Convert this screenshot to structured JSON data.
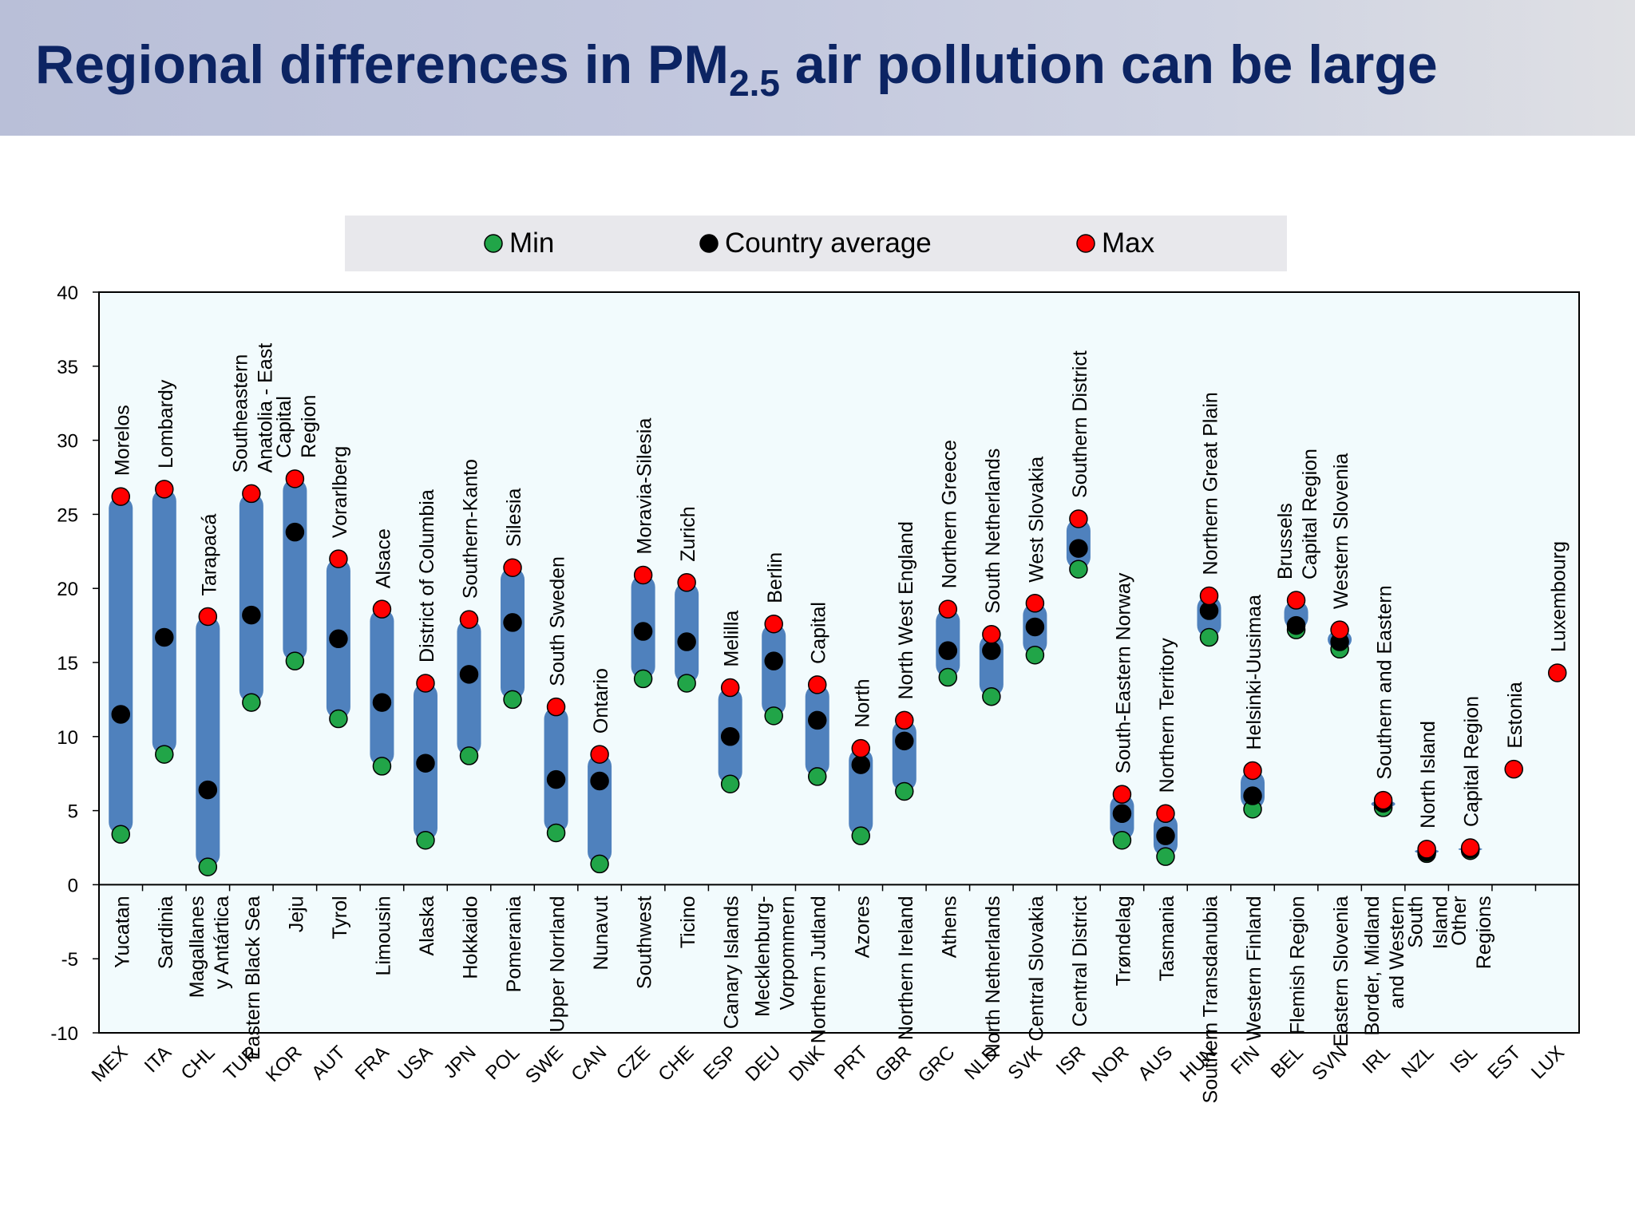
{
  "slide": {
    "title_main": "Regional differences in PM",
    "title_subscript": "2.5",
    "title_rest": " air pollution can be large"
  },
  "colors": {
    "title": "#0c2463",
    "bar": "#4f81bd",
    "min_marker": "#21a548",
    "avg_marker": "#000000",
    "max_marker": "#ff0000",
    "plot_background": "#f2fbfd",
    "legend_background": "#e8e8ec",
    "banner_background": "#c3c8de"
  },
  "chart_data": {
    "type": "range-dot",
    "ylim": [
      -10,
      40
    ],
    "yticks": [
      -10,
      -5,
      0,
      5,
      10,
      15,
      20,
      25,
      30,
      35,
      40
    ],
    "legend": {
      "position": "top-center",
      "entries": [
        {
          "key": "min",
          "label": "Min"
        },
        {
          "key": "avg",
          "label": "Country average"
        },
        {
          "key": "max",
          "label": "Max"
        }
      ]
    },
    "categories": [
      {
        "code": "MEX",
        "min": 3.4,
        "avg": 11.5,
        "max": 26.2,
        "min_region": "Yucatan",
        "max_region": "Morelos"
      },
      {
        "code": "ITA",
        "min": 8.8,
        "avg": 16.7,
        "max": 26.7,
        "min_region": "Sardinia",
        "max_region": "Lombardy"
      },
      {
        "code": "CHL",
        "min": 1.2,
        "avg": 6.4,
        "max": 18.1,
        "min_region": "Magallanes\ny Antártica",
        "max_region": "Tarapacá"
      },
      {
        "code": "TUR",
        "min": 12.3,
        "avg": 18.2,
        "max": 26.4,
        "min_region": "Eastern Black Sea",
        "max_region": "Southeastern\nAnatolia - East"
      },
      {
        "code": "KOR",
        "min": 15.1,
        "avg": 23.8,
        "max": 27.4,
        "min_region": "Jeju",
        "max_region": "Capital\nRegion"
      },
      {
        "code": "AUT",
        "min": 11.2,
        "avg": 16.6,
        "max": 22.0,
        "min_region": "Tyrol",
        "max_region": "Vorarlberg"
      },
      {
        "code": "FRA",
        "min": 8.0,
        "avg": 12.3,
        "max": 18.6,
        "min_region": "Limousin",
        "max_region": "Alsace"
      },
      {
        "code": "USA",
        "min": 3.0,
        "avg": 8.2,
        "max": 13.6,
        "min_region": "Alaska",
        "max_region": "District of Columbia"
      },
      {
        "code": "JPN",
        "min": 8.7,
        "avg": 14.2,
        "max": 17.9,
        "min_region": "Hokkaido",
        "max_region": "Southern-Kanto"
      },
      {
        "code": "POL",
        "min": 12.5,
        "avg": 17.7,
        "max": 21.4,
        "min_region": "Pomerania",
        "max_region": "Silesia"
      },
      {
        "code": "SWE",
        "min": 3.5,
        "avg": 7.1,
        "max": 12.0,
        "min_region": "Upper Norrland",
        "max_region": "South Sweden"
      },
      {
        "code": "CAN",
        "min": 1.4,
        "avg": 7.0,
        "max": 8.8,
        "min_region": "Nunavut",
        "max_region": "Ontario"
      },
      {
        "code": "CZE",
        "min": 13.9,
        "avg": 17.1,
        "max": 20.9,
        "min_region": "Southwest",
        "max_region": "Moravia-Silesia"
      },
      {
        "code": "CHE",
        "min": 13.6,
        "avg": 16.4,
        "max": 20.4,
        "min_region": "Ticino",
        "max_region": "Zurich"
      },
      {
        "code": "ESP",
        "min": 6.8,
        "avg": 10.0,
        "max": 13.3,
        "min_region": "Canary Islands",
        "max_region": "Melilla"
      },
      {
        "code": "DEU",
        "min": 11.4,
        "avg": 15.1,
        "max": 17.6,
        "min_region": "Mecklenburg-\nVorpommern",
        "max_region": "Berlin"
      },
      {
        "code": "DNK",
        "min": 7.3,
        "avg": 11.1,
        "max": 13.5,
        "min_region": "Northern Jutland",
        "max_region": "Capital"
      },
      {
        "code": "PRT",
        "min": 3.3,
        "avg": 8.1,
        "max": 9.2,
        "min_region": "Azores",
        "max_region": "North"
      },
      {
        "code": "GBR",
        "min": 6.3,
        "avg": 9.7,
        "max": 11.1,
        "min_region": "Northern Ireland",
        "max_region": "North West England"
      },
      {
        "code": "GRC",
        "min": 14.0,
        "avg": 15.8,
        "max": 18.6,
        "min_region": "Athens",
        "max_region": "Northern Greece"
      },
      {
        "code": "NLD",
        "min": 12.7,
        "avg": 15.8,
        "max": 16.9,
        "min_region": "North Netherlands",
        "max_region": "South Netherlands"
      },
      {
        "code": "SVK",
        "min": 15.5,
        "avg": 17.4,
        "max": 19.0,
        "min_region": "Central Slovakia",
        "max_region": "West Slovakia"
      },
      {
        "code": "ISR",
        "min": 21.3,
        "avg": 22.7,
        "max": 24.7,
        "min_region": "Central District",
        "max_region": "Southern District"
      },
      {
        "code": "NOR",
        "min": 3.0,
        "avg": 4.8,
        "max": 6.1,
        "min_region": "Trøndelag",
        "max_region": "South-Eastern Norway"
      },
      {
        "code": "AUS",
        "min": 1.9,
        "avg": 3.3,
        "max": 4.8,
        "min_region": "Tasmania",
        "max_region": "Northern Territory"
      },
      {
        "code": "HUN",
        "min": 16.7,
        "avg": 18.5,
        "max": 19.5,
        "min_region": "Southern Transdanubia",
        "max_region": "Northern Great Plain"
      },
      {
        "code": "FIN",
        "min": 5.1,
        "avg": 6.0,
        "max": 7.7,
        "min_region": "Western Finland",
        "max_region": "Helsinki-Uusimaa"
      },
      {
        "code": "BEL",
        "min": 17.2,
        "avg": 17.5,
        "max": 19.2,
        "min_region": "Flemish Region",
        "max_region": "Brussels\nCapital Region"
      },
      {
        "code": "SVN",
        "min": 15.9,
        "avg": 16.4,
        "max": 17.2,
        "min_region": "Eastern Slovenia",
        "max_region": "Western Slovenia"
      },
      {
        "code": "IRL",
        "min": 5.2,
        "avg": 5.5,
        "max": 5.7,
        "min_region": "Border, Midland\nand Western",
        "max_region": "Southern and Eastern"
      },
      {
        "code": "NZL",
        "min": 2.1,
        "avg": 2.2,
        "max": 2.4,
        "min_region": "South\nIsland",
        "max_region": "North Island"
      },
      {
        "code": "ISL",
        "min": 2.3,
        "avg": 2.4,
        "max": 2.5,
        "min_region": "Other\nRegions",
        "max_region": "Capital Region"
      },
      {
        "code": "EST",
        "min": null,
        "avg": null,
        "max": 7.8,
        "min_region": "",
        "max_region": "Estonia"
      },
      {
        "code": "LUX",
        "min": null,
        "avg": null,
        "max": 14.3,
        "min_region": "",
        "max_region": "Luxembourg"
      }
    ]
  }
}
